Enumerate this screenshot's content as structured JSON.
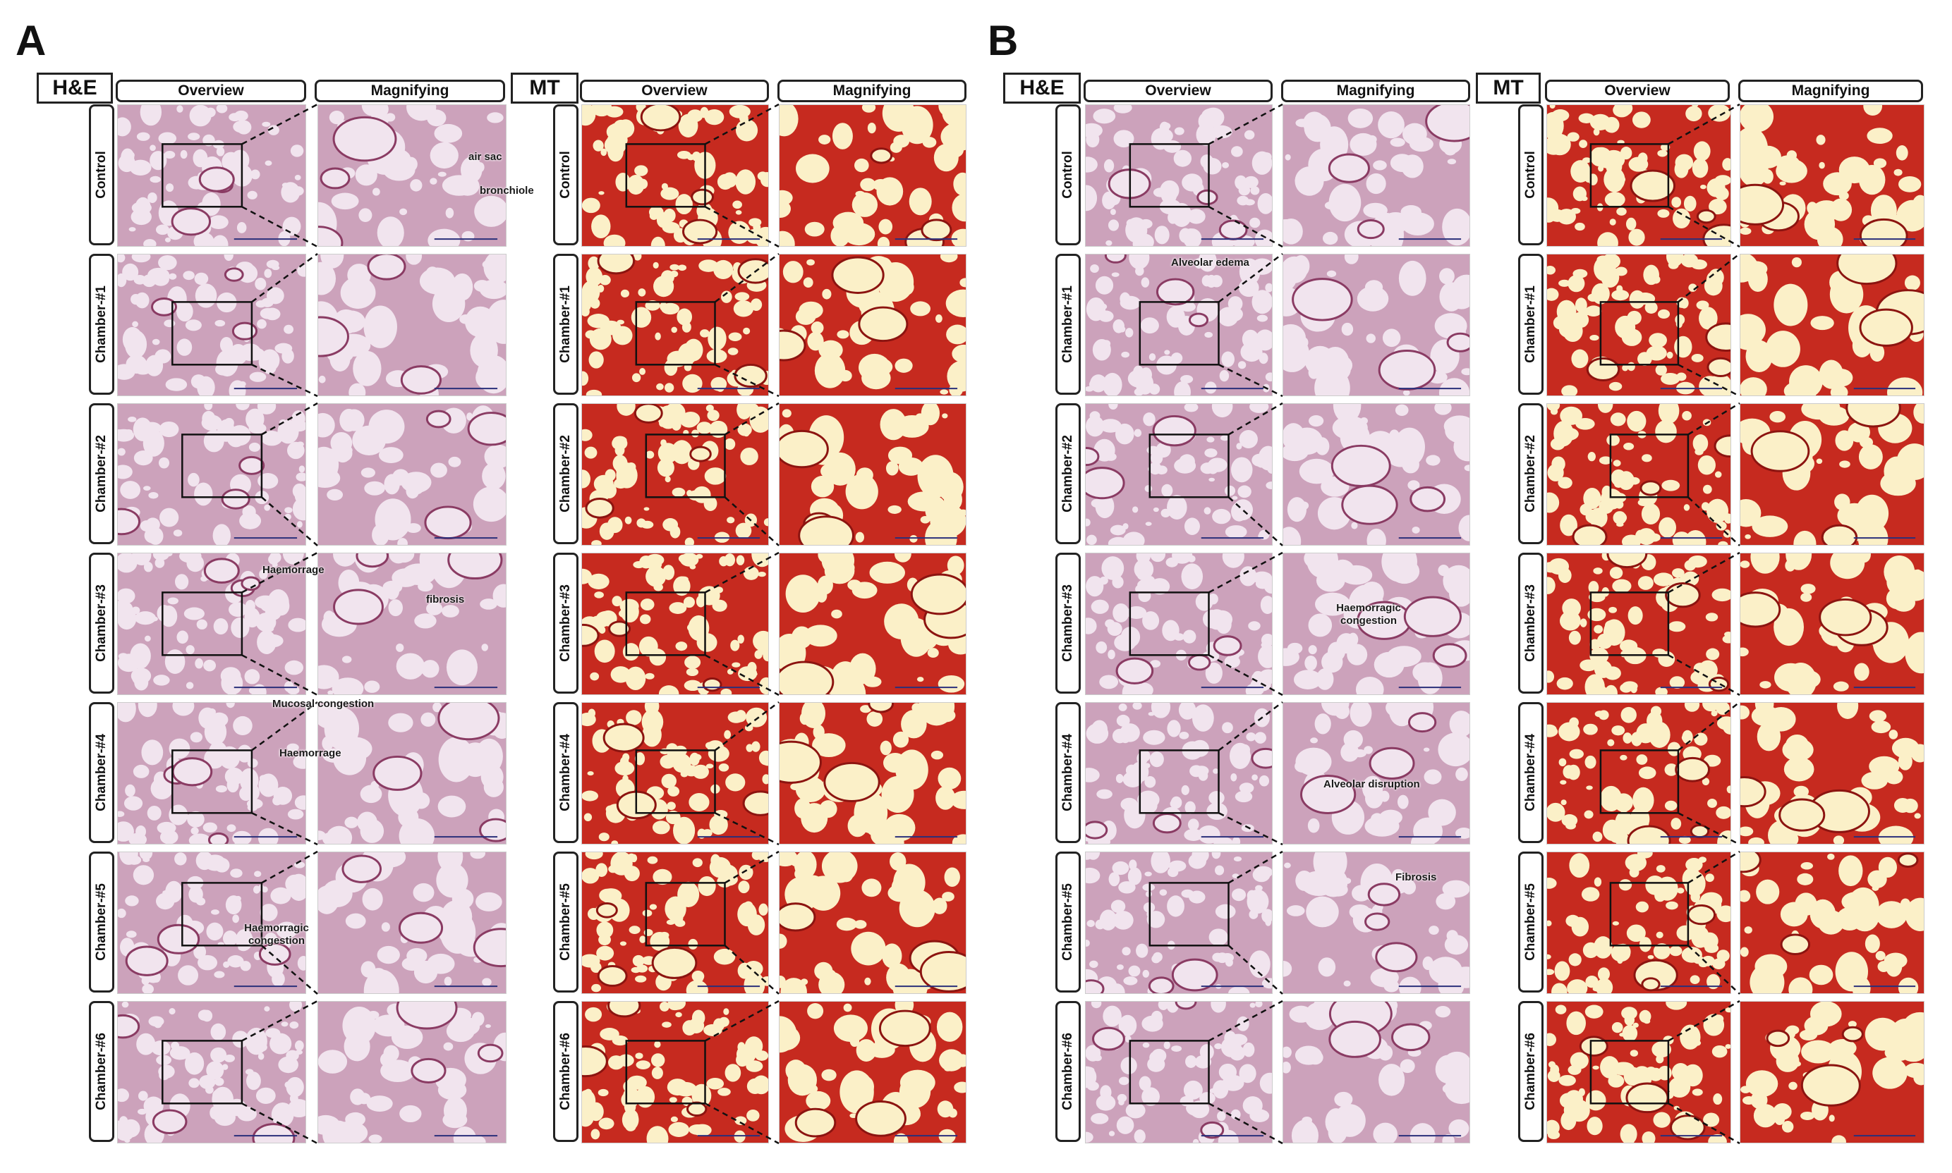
{
  "figure": {
    "panel_letters": [
      "A",
      "B"
    ],
    "stains": {
      "he": "H&E",
      "mt": "MT"
    },
    "column_headers": {
      "overview": "Overview",
      "magnifying": "Magnifying"
    },
    "rows": [
      "Control",
      "Chamber-#1",
      "Chamber-#2",
      "Chamber-#3",
      "Chamber-#4",
      "Chamber-#5",
      "Chamber-#6"
    ],
    "annotations": {
      "a_air_sac": "air sac",
      "a_bronchiole": "bronchiole",
      "a_haemorrage_1": "Haemorrage",
      "a_fibrosis": "fibrosis",
      "a_mucosal_congestion": "Mucosal congestion",
      "a_haemorrage_2": "Haemorrage",
      "a_haemorragic_congestion": "Haemorragic congestion",
      "b_alveolar_edema": "Alveolar edema",
      "b_haemorragic_congestion": "Haemorragic congestion",
      "b_alveolar_disruption": "Alveolar disruption",
      "b_fibrosis": "Fibrosis"
    },
    "stain_colors": {
      "he_base": "#f1e4ee",
      "he_tissue": "#c77b9f",
      "he_blue": "#d8ecf1",
      "mt_base": "#fbf0c8",
      "mt_tissue": "#c62a1f",
      "mt_dark": "#8c1410"
    }
  }
}
